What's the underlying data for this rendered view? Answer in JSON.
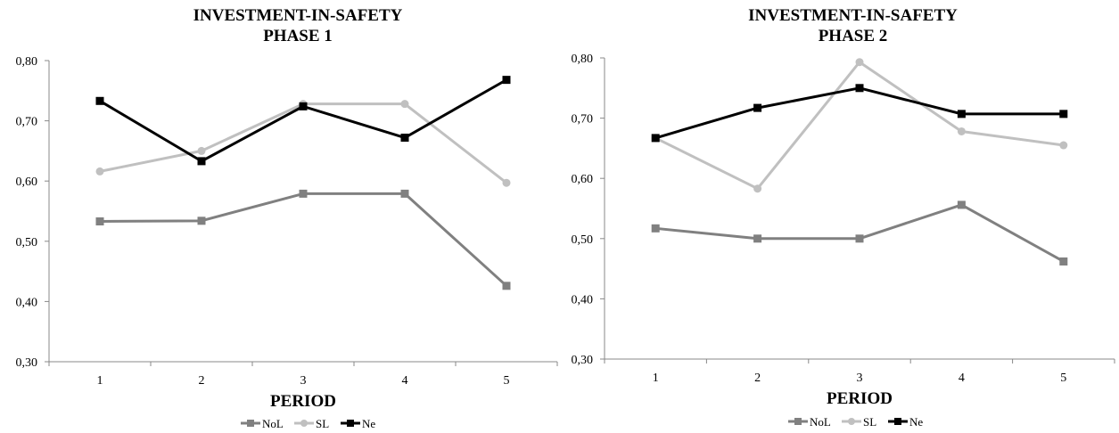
{
  "chart_data": [
    {
      "type": "line",
      "title_line1": "INVESTMENT-IN-SAFETY",
      "title_line2": "PHASE 1",
      "xlabel": "PERIOD",
      "ylabel": "",
      "categories": [
        "1",
        "2",
        "3",
        "4",
        "5"
      ],
      "ylim": [
        0.3,
        0.8
      ],
      "yticks": [
        "0,30",
        "0,40",
        "0,50",
        "0,60",
        "0,70",
        "0,80"
      ],
      "grid": false,
      "legend_position": "bottom",
      "series": [
        {
          "name": "NoL",
          "values": [
            0.533,
            0.534,
            0.579,
            0.579,
            0.426
          ],
          "color": "#808080",
          "marker": "square"
        },
        {
          "name": "SL",
          "values": [
            0.616,
            0.65,
            0.728,
            0.728,
            0.597
          ],
          "color": "#c0c0c0",
          "marker": "circle"
        },
        {
          "name": "Ne",
          "values": [
            0.733,
            0.633,
            0.724,
            0.672,
            0.768
          ],
          "color": "#000000",
          "marker": "square"
        }
      ]
    },
    {
      "type": "line",
      "title_line1": "INVESTMENT-IN-SAFETY",
      "title_line2": "PHASE 2",
      "xlabel": "PERIOD",
      "ylabel": "",
      "categories": [
        "1",
        "2",
        "3",
        "4",
        "5"
      ],
      "ylim": [
        0.3,
        0.8
      ],
      "yticks": [
        "0,30",
        "0,40",
        "0,50",
        "0,60",
        "0,70",
        "0,80"
      ],
      "grid": false,
      "legend_position": "bottom",
      "series": [
        {
          "name": "NoL",
          "values": [
            0.517,
            0.5,
            0.5,
            0.556,
            0.462
          ],
          "color": "#808080",
          "marker": "square"
        },
        {
          "name": "SL",
          "values": [
            0.667,
            0.583,
            0.793,
            0.678,
            0.655
          ],
          "color": "#c0c0c0",
          "marker": "circle"
        },
        {
          "name": "Ne",
          "values": [
            0.667,
            0.717,
            0.75,
            0.707,
            0.707
          ],
          "color": "#000000",
          "marker": "square"
        }
      ]
    }
  ]
}
